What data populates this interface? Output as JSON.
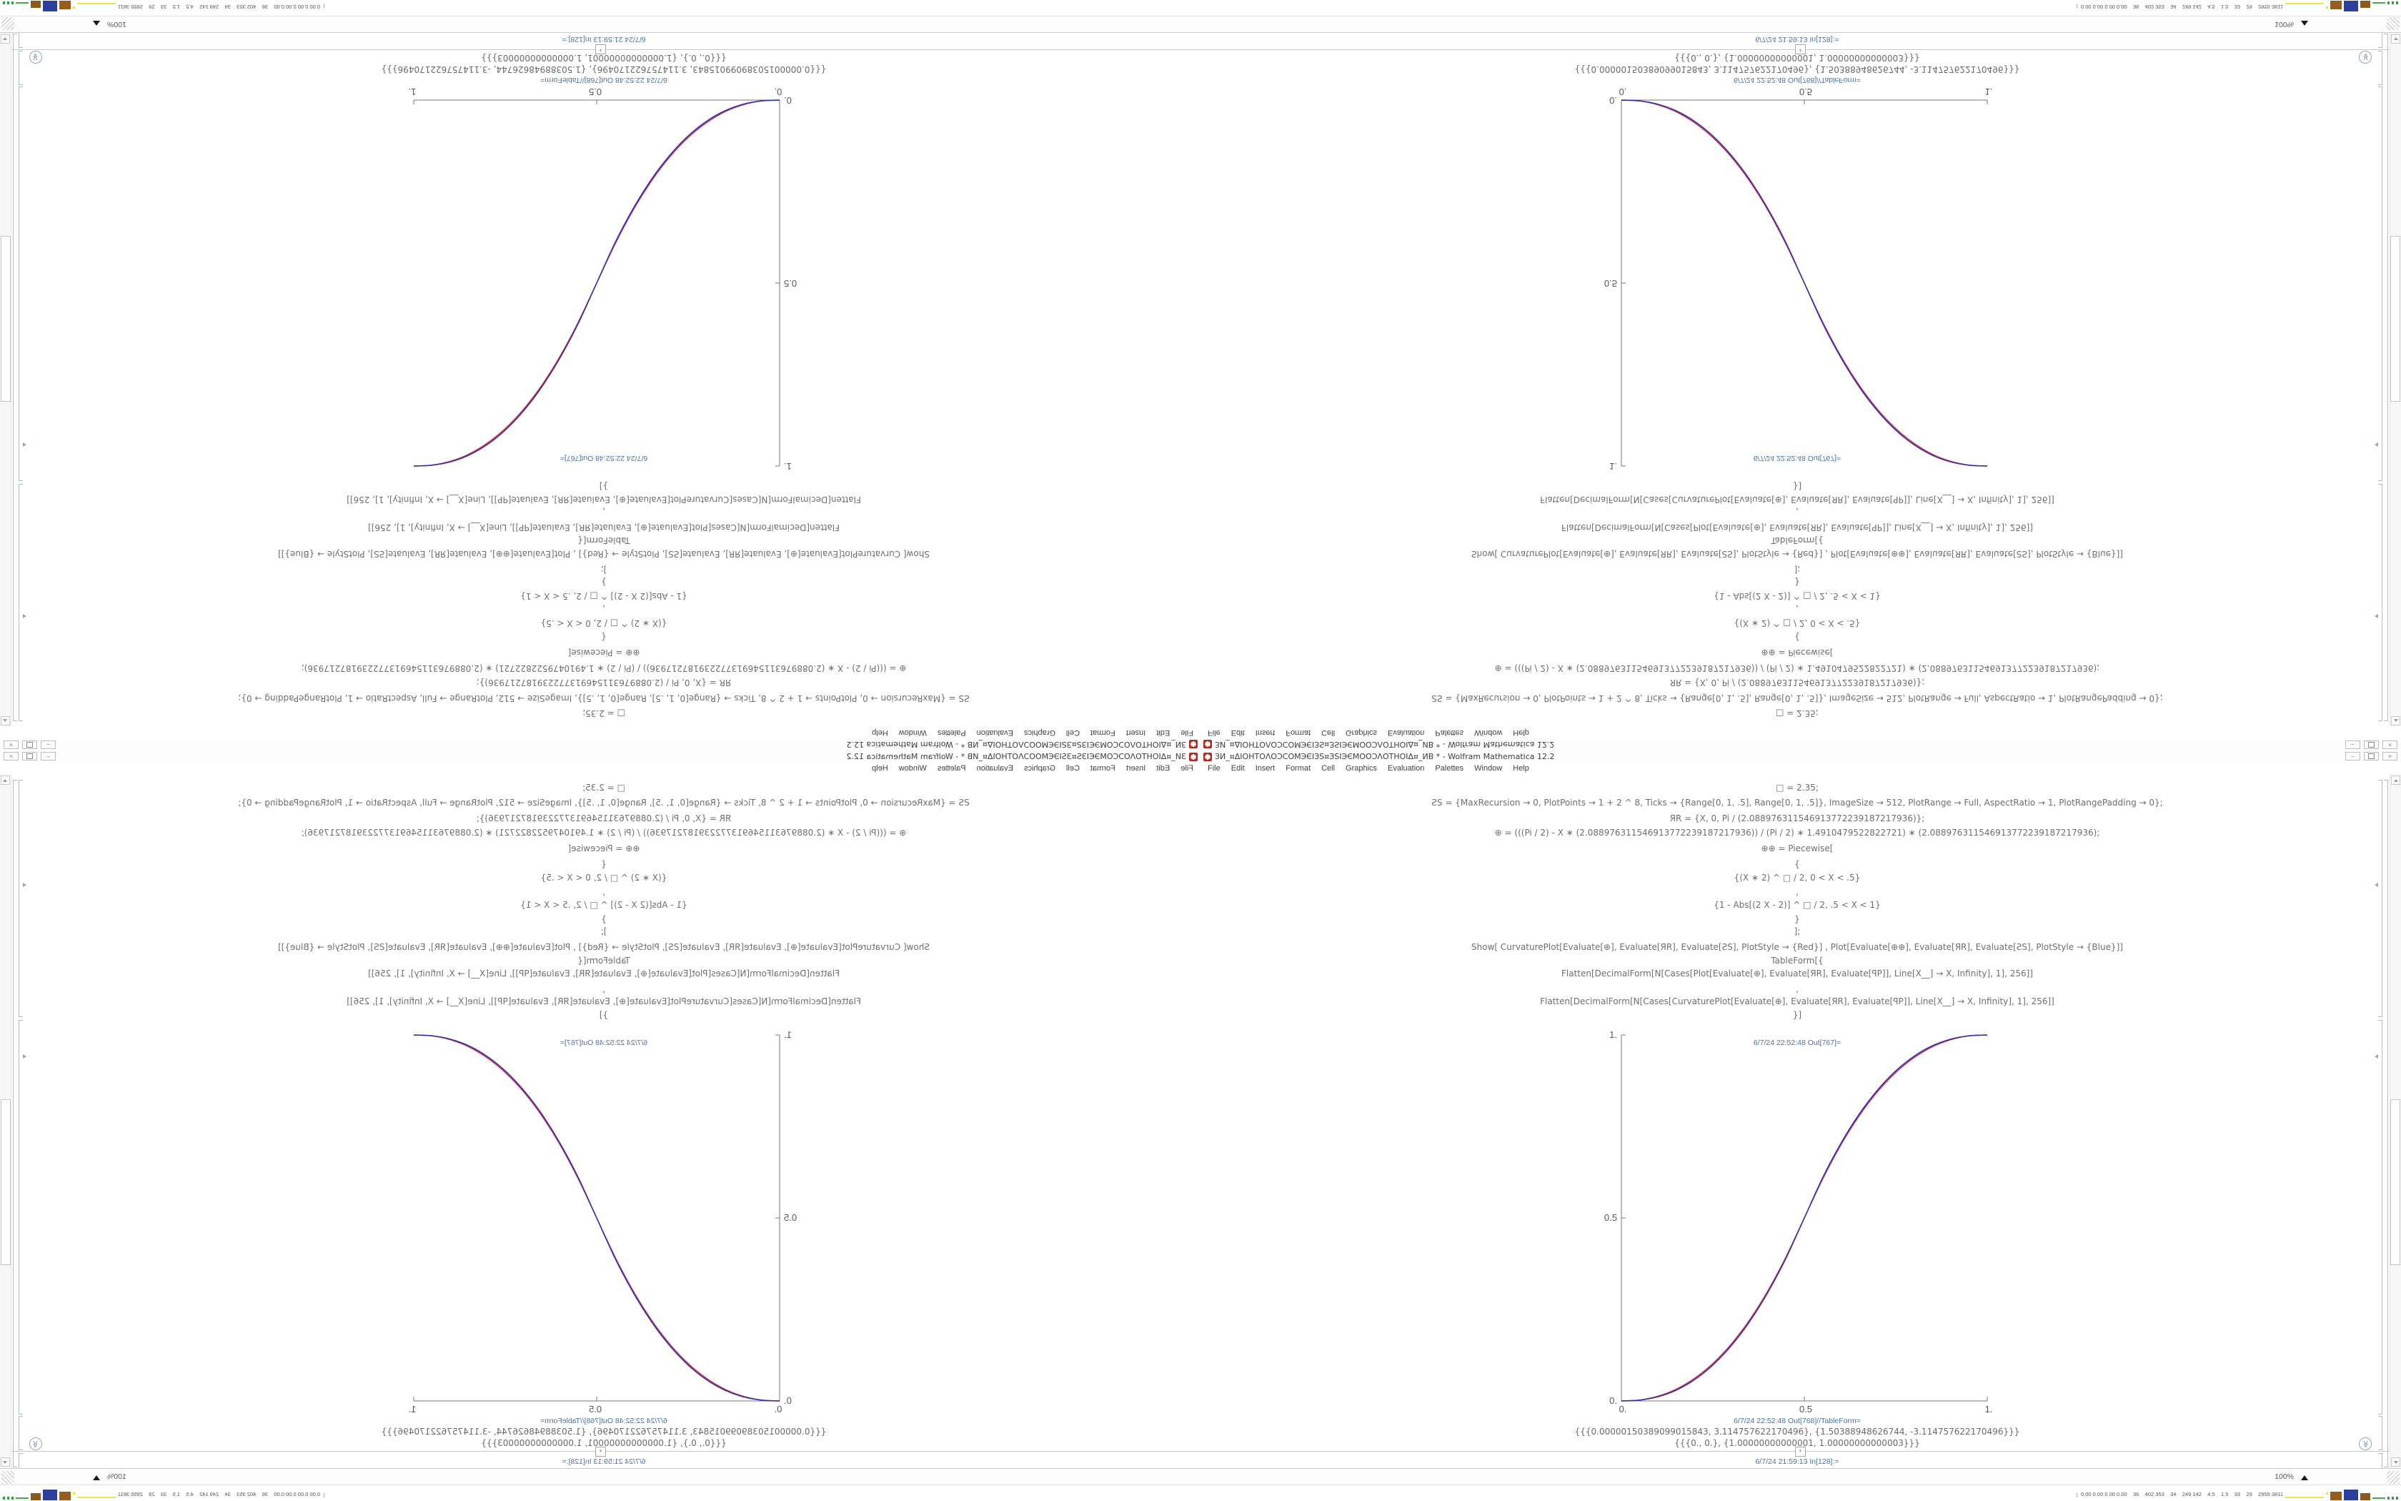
{
  "window": {
    "title": "ЗИ_¤ΔΙΟΗΤΟΛΟƆCOMЭЄΙЗЅ¤ЗЅΙЭЄΜΟΟƆΛΟΤΗΟΙΔ¤_ИB * - Wolfram Mathematica 12.2",
    "menu": [
      "File",
      "Edit",
      "Insert",
      "Format",
      "Cell",
      "Graphics",
      "Evaluation",
      "Palettes",
      "Window",
      "Help"
    ],
    "controls": {
      "minimize": "–",
      "close": "×"
    }
  },
  "notebook": {
    "code_lines": [
      "□ = 2.35;",
      "ƧS = {MaxRecursion → 0, PlotPoints → 1 + 2 ^ 8, Ticks → {Range[0, 1, .5], Range[0, 1, .5]}, ImageSize → 512, PlotRange → Full, AspectRatio → 1, PlotRangePadding → 0};",
      "ЯR = {X, 0, Pi / (2.088976311546913772239187217936)};",
      "⊕ = (((Pi / 2) - X ∗ (2.088976311546913772239187217936)) / (Pi / 2) ∗ 1.4910479522822721) ∗ (2.088976311546913772239187217936);",
      "⊕⊕ = Piecewise[",
      "{",
      "{(X ∗ 2) ^ □ / 2, 0 < X < .5}",
      ",",
      "{1 - Abs[(2 X - 2)] ^ □ / 2, .5 < X < 1}",
      "}",
      "];",
      "Show[   CurvaturePlot[Evaluate[⊕], Evaluate[ЯR], Evaluate[ƧS], PlotStyle → {Red}]   ,   Plot[Evaluate[⊕⊕], Evaluate[ЯR], Evaluate[ƧS], PlotStyle → {Blue}]]",
      "TableForm[{",
      "Flatten[DecimalForm[N[Cases[Plot[Evaluate[⊕], Evaluate[ЯR], Evaluate[ꟼP]], Line[X__] → X, Infinity], 1], 256]]",
      ",",
      "Flatten[DecimalForm[N[Cases[CurvaturePlot[Evaluate[⊕], Evaluate[ЯR], Evaluate[ꟼP]], Line[X__] → X, Infinity], 1], 256]]",
      "}]"
    ],
    "out_plot_label": "6/7/24 22:52:48 Out[767]=",
    "out_table_label": "6/7/24 22:52:48 Out[768]//TableForm=",
    "table_lines": [
      "{{{0.00000150389099015843, 3.114757622170496}, {1.50388948626744, -3.114757622170496}}}",
      "{{{0., 0.}, {1.00000000000001, 1.00000000000003}}}"
    ],
    "in_label": "6/7/24 21:59:13 In[128]:=",
    "insert_plus": "+"
  },
  "chart_data": {
    "type": "line",
    "title": "",
    "xlabel": "",
    "ylabel": "",
    "xlim": [
      0,
      1
    ],
    "ylim": [
      0,
      1
    ],
    "xticks": {
      "values": [
        0,
        0.5,
        1
      ],
      "labels": [
        "0.",
        "0.5",
        "1."
      ]
    },
    "yticks": {
      "values": [
        0,
        0.5,
        1
      ],
      "labels": [
        "0.",
        "0.5",
        "1."
      ]
    },
    "grid": false,
    "legend": "none",
    "axes_color": "#777777",
    "x": [
      0,
      0.05,
      0.1,
      0.15,
      0.2,
      0.25,
      0.3,
      0.35,
      0.4,
      0.45,
      0.5,
      0.55,
      0.6,
      0.65,
      0.7,
      0.75,
      0.8,
      0.85,
      0.9,
      0.95,
      1
    ],
    "series": [
      {
        "name": "CurvaturePlot (Red)",
        "color": "#d42a2a",
        "values": [
          0,
          0.0026,
          0.0128,
          0.032,
          0.0618,
          0.1022,
          0.1548,
          0.2205,
          0.3,
          0.3938,
          0.5,
          0.6062,
          0.7,
          0.7795,
          0.8452,
          0.8978,
          0.9382,
          0.968,
          0.9872,
          0.9974,
          1
        ]
      },
      {
        "name": "Plot (Blue)",
        "color": "#2b2bcc",
        "values": [
          0,
          0.0022,
          0.0114,
          0.0295,
          0.058,
          0.0981,
          0.1505,
          0.2162,
          0.296,
          0.3903,
          0.5,
          0.6097,
          0.704,
          0.7838,
          0.8495,
          0.9019,
          0.942,
          0.9705,
          0.9886,
          0.9978,
          1
        ]
      }
    ]
  },
  "status_bar": {
    "zoom": "100%"
  },
  "taskbar": {
    "tray_text": "0.00 0.00 0.00 0.00    36    402 353    34    249 142    4.5    1.5    33    29    2955 3811",
    "tray_icons": [
      "updown-arrow-icon",
      "yellow-graph-line",
      "yellow-dot",
      "brown-graph-block",
      "blue-graph-block",
      "brown-graph-block",
      "green-graph-line",
      "green-graph-dots"
    ]
  }
}
